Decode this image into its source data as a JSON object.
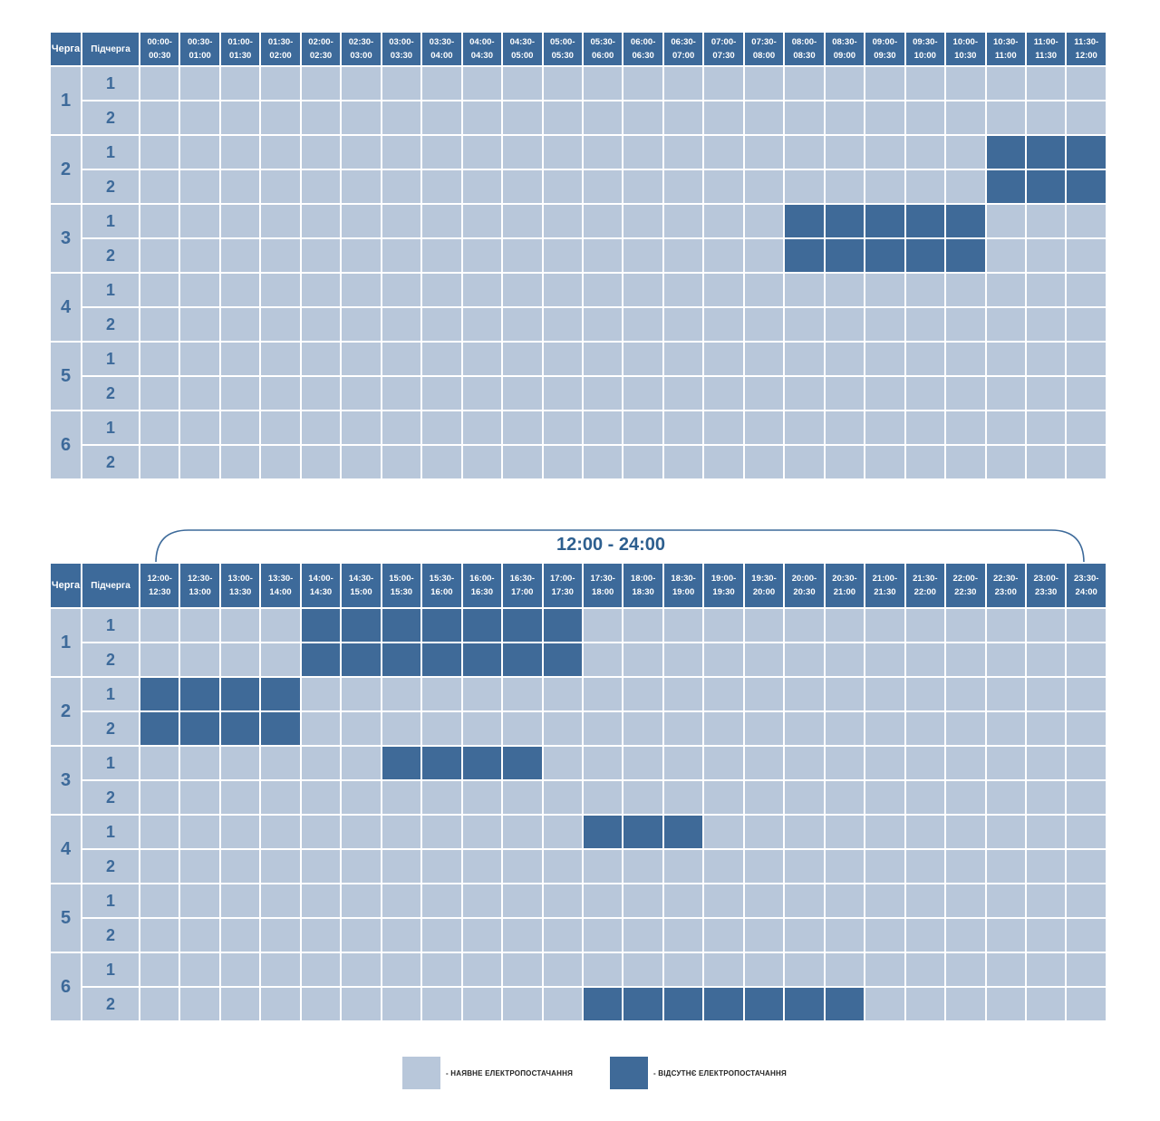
{
  "headers": {
    "queue": "Черга",
    "subqueue": "Підчерга"
  },
  "top": {
    "slots": [
      "00:00-00:30",
      "00:30-01:00",
      "01:00-01:30",
      "01:30-02:00",
      "02:00-02:30",
      "02:30-03:00",
      "03:00-03:30",
      "03:30-04:00",
      "04:00-04:30",
      "04:30-05:00",
      "05:00-05:30",
      "05:30-06:00",
      "06:00-06:30",
      "06:30-07:00",
      "07:00-07:30",
      "07:30-08:00",
      "08:00-08:30",
      "08:30-09:00",
      "09:00-09:30",
      "09:30-10:00",
      "10:00-10:30",
      "10:30-11:00",
      "11:00-11:30",
      "11:30-12:00"
    ]
  },
  "bottom": {
    "range_label": "12:00 - 24:00",
    "slots": [
      "12:00-12:30",
      "12:30-13:00",
      "13:00-13:30",
      "13:30-14:00",
      "14:00-14:30",
      "14:30-15:00",
      "15:00-15:30",
      "15:30-16:00",
      "16:00-16:30",
      "16:30-17:00",
      "17:00-17:30",
      "17:30-18:00",
      "18:00-18:30",
      "18:30-19:00",
      "19:00-19:30",
      "19:30-20:00",
      "20:00-20:30",
      "20:30-21:00",
      "21:00-21:30",
      "21:30-22:00",
      "22:00-22:30",
      "22:30-23:00",
      "23:00-23:30",
      "23:30-24:00"
    ]
  },
  "queues": [
    {
      "label": "1",
      "subs": [
        {
          "label": "1",
          "off_top": [],
          "off_bottom": [
            4,
            5,
            6,
            7,
            8,
            9,
            10
          ]
        },
        {
          "label": "2",
          "off_top": [],
          "off_bottom": [
            4,
            5,
            6,
            7,
            8,
            9,
            10
          ]
        }
      ]
    },
    {
      "label": "2",
      "subs": [
        {
          "label": "1",
          "off_top": [
            21,
            22,
            23
          ],
          "off_bottom": [
            0,
            1,
            2,
            3
          ]
        },
        {
          "label": "2",
          "off_top": [
            21,
            22,
            23
          ],
          "off_bottom": [
            0,
            1,
            2,
            3
          ]
        }
      ]
    },
    {
      "label": "3",
      "subs": [
        {
          "label": "1",
          "off_top": [
            16,
            17,
            18,
            19,
            20
          ],
          "off_bottom": [
            6,
            7,
            8,
            9
          ]
        },
        {
          "label": "2",
          "off_top": [
            16,
            17,
            18,
            19,
            20
          ],
          "off_bottom": []
        }
      ]
    },
    {
      "label": "4",
      "subs": [
        {
          "label": "1",
          "off_top": [],
          "off_bottom": [
            11,
            12,
            13
          ]
        },
        {
          "label": "2",
          "off_top": [],
          "off_bottom": []
        }
      ]
    },
    {
      "label": "5",
      "subs": [
        {
          "label": "1",
          "off_top": [],
          "off_bottom": []
        },
        {
          "label": "2",
          "off_top": [],
          "off_bottom": []
        }
      ]
    },
    {
      "label": "6",
      "subs": [
        {
          "label": "1",
          "off_top": [],
          "off_bottom": []
        },
        {
          "label": "2",
          "off_top": [],
          "off_bottom": [
            11,
            12,
            13,
            14,
            15,
            16,
            17
          ]
        }
      ]
    }
  ],
  "legend": {
    "available": "- НАЯВНЕ ЕЛЕКТРОПОСТАЧАННЯ",
    "absent": "- ВІДСУТНЄ ЕЛЕКТРОПОСТАЧАННЯ"
  },
  "colors": {
    "available": "#b8c7da",
    "absent": "#3f6a98",
    "header": "#3d6a9a"
  }
}
